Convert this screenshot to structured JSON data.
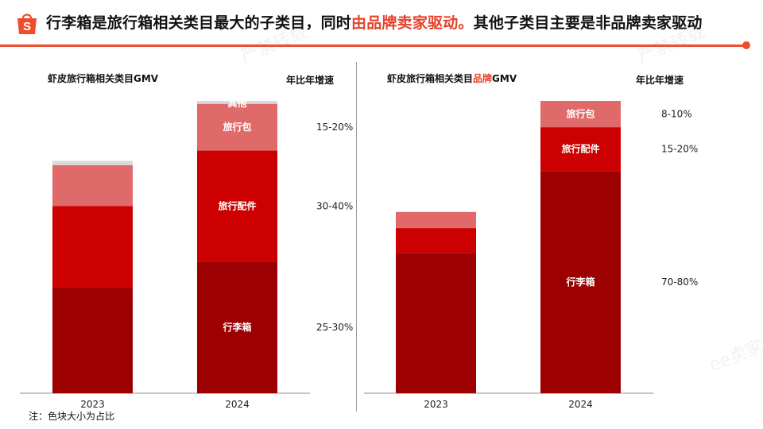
{
  "header": {
    "title_prefix": "行李箱是旅行箱相关类目最大的子类目，同时",
    "title_highlight": "由品牌卖家驱动。",
    "title_suffix": "其他子类目主要是非品牌卖家驱动"
  },
  "footnote": "注：色块大小为占比",
  "watermarks": [
    "严禁转载",
    "ee卖家"
  ],
  "colors": {
    "accent": "#ee4d2d",
    "luggage": "#9c0000",
    "accessories": "#cc0000",
    "bags": "#e06a6a",
    "other": "#d9d9d9"
  },
  "chart_data": [
    {
      "type": "bar",
      "stacked": true,
      "title": "虾皮旅行箱相关类目GMV",
      "title_highlight": "",
      "growth_header": "年比年增速",
      "categories": [
        "2023",
        "2024"
      ],
      "ylim": [
        0,
        100
      ],
      "series": [
        {
          "name": "行李箱",
          "values": [
            36,
            45
          ],
          "growth": "25-30%",
          "color_key": "luggage"
        },
        {
          "name": "旅行配件",
          "values": [
            28,
            38
          ],
          "growth": "30-40%",
          "color_key": "accessories"
        },
        {
          "name": "旅行包",
          "values": [
            14,
            16
          ],
          "growth": "15-20%",
          "color_key": "bags"
        },
        {
          "name": "其他",
          "values": [
            1.5,
            1
          ],
          "growth": "",
          "color_key": "other"
        }
      ]
    },
    {
      "type": "bar",
      "stacked": true,
      "title": "虾皮旅行箱相关类目",
      "title_highlight": "品牌",
      "title_suffix": "GMV",
      "growth_header": "年比年增速",
      "categories": [
        "2023",
        "2024"
      ],
      "ylim": [
        0,
        100
      ],
      "series": [
        {
          "name": "行李箱",
          "values": [
            48,
            76
          ],
          "growth": "70-80%",
          "color_key": "luggage"
        },
        {
          "name": "旅行配件",
          "values": [
            8.5,
            15
          ],
          "growth": "15-20%",
          "color_key": "accessories"
        },
        {
          "name": "旅行包",
          "values": [
            5.5,
            9
          ],
          "growth": "8-10%",
          "color_key": "bags"
        }
      ]
    }
  ]
}
